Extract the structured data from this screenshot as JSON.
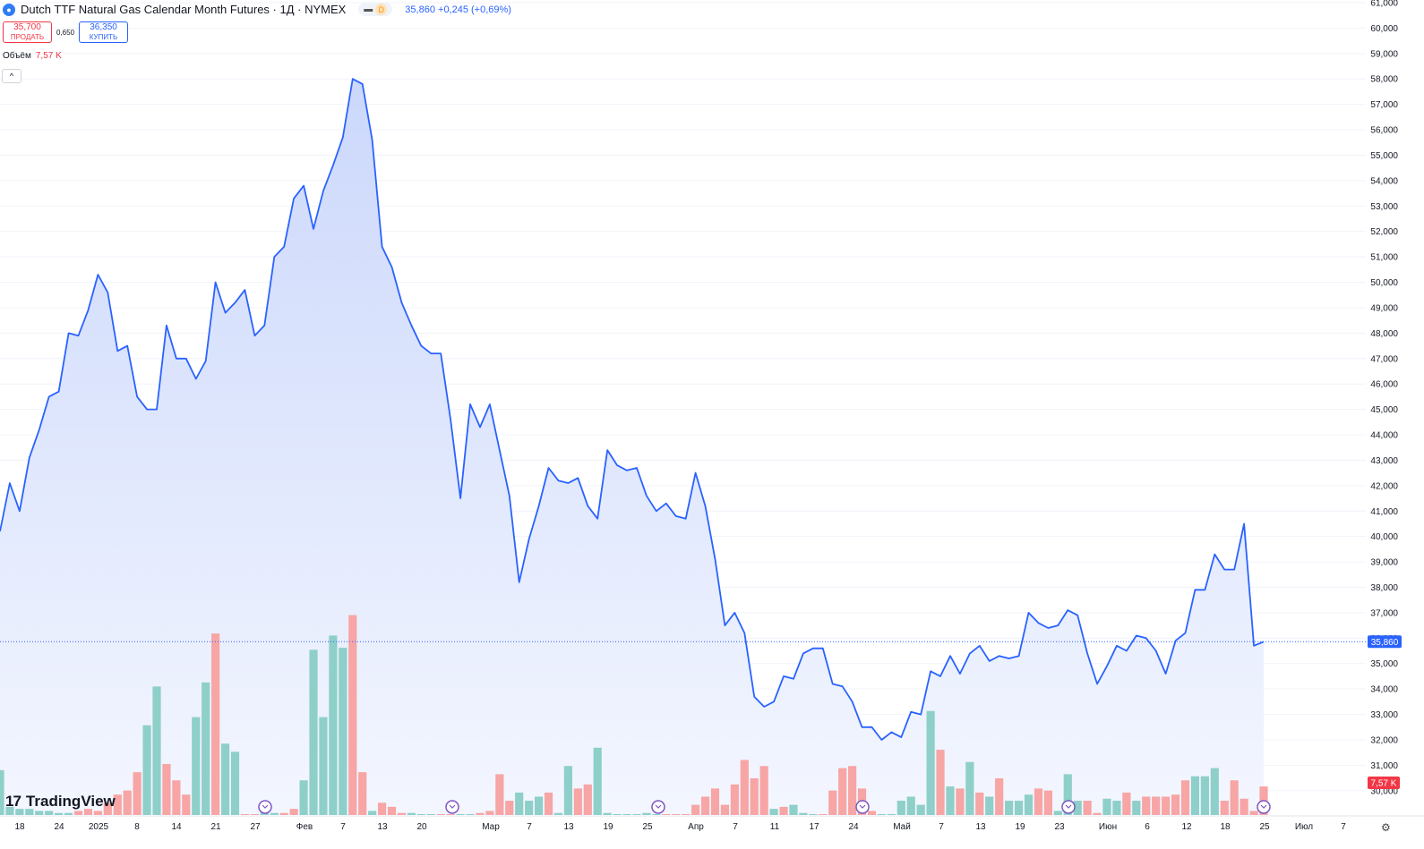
{
  "legend": {
    "icon": "drop-icon",
    "title": "Dutch TTF Natural Gas Calendar Month Futures · 1Д · NYMEX",
    "badge_letter": "D",
    "last": "35,860",
    "change": "+0,245 (+0,69%)"
  },
  "trade": {
    "sell_price": "35,700",
    "sell_label": "ПРОДАТЬ",
    "spread": "0,650",
    "buy_price": "36,350",
    "buy_label": "КУПИТЬ"
  },
  "volume_legend": {
    "label": "Объём",
    "value": "7,57 K"
  },
  "collapse_icon": "^",
  "brand": "TradingView",
  "colors": {
    "line": "#2962ff",
    "area_top": "#c9d6fb",
    "area_bottom": "#f3f6ff",
    "vol_up": "#8ecfc9",
    "vol_down": "#f7a5a5",
    "price_badge": "#2962ff",
    "vol_badge": "#f23645"
  },
  "chart_data": {
    "type": "area",
    "ylim": [
      29.5,
      61
    ],
    "y_ticks": [
      "30,000",
      "31,000",
      "32,000",
      "33,000",
      "34,000",
      "35,000",
      "36,000",
      "37,000",
      "38,000",
      "39,000",
      "40,000",
      "41,000",
      "42,000",
      "43,000",
      "44,000",
      "45,000",
      "46,000",
      "47,000",
      "48,000",
      "49,000",
      "50,000",
      "51,000",
      "52,000",
      "53,000",
      "54,000",
      "55,000",
      "56,000",
      "57,000",
      "58,000",
      "59,000",
      "60,000",
      "61,000"
    ],
    "x_ticks": [
      "18",
      "24",
      "2025",
      "8",
      "14",
      "21",
      "27",
      "Фев",
      "7",
      "13",
      "20",
      "Мар",
      "7",
      "13",
      "19",
      "25",
      "Апр",
      "7",
      "11",
      "17",
      "24",
      "Май",
      "7",
      "13",
      "19",
      "23",
      "Июн",
      "6",
      "12",
      "18",
      "25",
      "Июл",
      "7"
    ],
    "last_price_label": "35,860",
    "last_price": 35.86,
    "volume_last_label": "7,57 K",
    "series": [
      {
        "values": [
          40.2,
          42.1,
          41.0,
          43.1,
          44.2,
          45.5,
          45.7,
          48.0,
          47.9,
          48.9,
          50.3,
          49.6,
          47.3,
          47.5,
          45.5,
          45.0,
          45.0,
          48.3,
          47.0,
          47.0,
          46.2,
          46.9,
          50.0,
          48.8,
          49.2,
          49.7,
          47.9,
          48.3,
          51.0,
          51.4,
          53.3,
          53.8,
          52.1,
          53.6,
          54.6,
          55.7,
          58.0,
          57.8,
          55.6,
          51.4,
          50.6,
          49.2,
          48.3,
          47.5,
          47.2,
          47.2,
          44.6,
          41.5,
          45.2,
          44.3,
          45.2,
          43.4,
          41.6,
          38.2,
          39.9,
          41.2,
          42.7,
          42.2,
          42.1,
          42.3,
          41.2,
          40.7,
          43.4,
          42.8,
          42.6,
          42.7,
          41.6,
          41.0,
          41.3,
          40.8,
          40.7,
          42.5,
          41.2,
          39.1,
          36.5,
          37.0,
          36.2,
          33.7,
          33.3,
          33.5,
          34.5,
          34.4,
          35.4,
          35.6,
          35.6,
          34.2,
          34.1,
          33.5,
          32.5,
          32.5,
          32.0,
          32.3,
          32.1,
          33.1,
          33.0,
          34.7,
          34.5,
          35.3,
          34.6,
          35.4,
          35.7,
          35.1,
          35.3,
          35.2,
          35.3,
          37.0,
          36.6,
          36.4,
          36.5,
          37.1,
          36.9,
          35.4,
          34.2,
          34.9,
          35.7,
          35.5,
          36.1,
          36.0,
          35.5,
          34.6,
          35.9,
          36.2,
          37.9,
          37.9,
          39.3,
          38.7,
          38.7,
          40.5,
          35.7,
          35.86
        ]
      }
    ],
    "volume": [
      {
        "up": true,
        "v": 0.22
      },
      {
        "up": true,
        "v": 0.04
      },
      {
        "up": true,
        "v": 0.03
      },
      {
        "up": true,
        "v": 0.03
      },
      {
        "up": true,
        "v": 0.02
      },
      {
        "up": true,
        "v": 0.02
      },
      {
        "up": true,
        "v": 0.01
      },
      {
        "up": true,
        "v": 0.01
      },
      {
        "up": false,
        "v": 0.02
      },
      {
        "up": false,
        "v": 0.03
      },
      {
        "up": false,
        "v": 0.02
      },
      {
        "up": false,
        "v": 0.06
      },
      {
        "up": false,
        "v": 0.1
      },
      {
        "up": false,
        "v": 0.12
      },
      {
        "up": false,
        "v": 0.21
      },
      {
        "up": true,
        "v": 0.44
      },
      {
        "up": true,
        "v": 0.63
      },
      {
        "up": false,
        "v": 0.25
      },
      {
        "up": false,
        "v": 0.17
      },
      {
        "up": false,
        "v": 0.1
      },
      {
        "up": true,
        "v": 0.48
      },
      {
        "up": true,
        "v": 0.65
      },
      {
        "up": false,
        "v": 0.89
      },
      {
        "up": true,
        "v": 0.35
      },
      {
        "up": true,
        "v": 0.31
      },
      {
        "up": false,
        "v": 0.0
      },
      {
        "up": false,
        "v": 0.0
      },
      {
        "up": true,
        "v": 0.02
      },
      {
        "up": true,
        "v": 0.01
      },
      {
        "up": false,
        "v": 0.01
      },
      {
        "up": false,
        "v": 0.03
      },
      {
        "up": true,
        "v": 0.17
      },
      {
        "up": true,
        "v": 0.81
      },
      {
        "up": true,
        "v": 0.48
      },
      {
        "up": true,
        "v": 0.88
      },
      {
        "up": true,
        "v": 0.82
      },
      {
        "up": false,
        "v": 0.98
      },
      {
        "up": false,
        "v": 0.21
      },
      {
        "up": true,
        "v": 0.02
      },
      {
        "up": false,
        "v": 0.06
      },
      {
        "up": false,
        "v": 0.04
      },
      {
        "up": false,
        "v": 0.01
      },
      {
        "up": true,
        "v": 0.01
      },
      {
        "up": true,
        "v": 0.0
      },
      {
        "up": true,
        "v": 0.0
      },
      {
        "up": false,
        "v": 0.0
      },
      {
        "up": false,
        "v": 0.0
      },
      {
        "up": true,
        "v": 0.0
      },
      {
        "up": true,
        "v": 0.0
      },
      {
        "up": false,
        "v": 0.01
      },
      {
        "up": false,
        "v": 0.02
      },
      {
        "up": false,
        "v": 0.2
      },
      {
        "up": false,
        "v": 0.07
      },
      {
        "up": true,
        "v": 0.11
      },
      {
        "up": true,
        "v": 0.07
      },
      {
        "up": true,
        "v": 0.09
      },
      {
        "up": false,
        "v": 0.11
      },
      {
        "up": true,
        "v": 0.01
      },
      {
        "up": true,
        "v": 0.24
      },
      {
        "up": false,
        "v": 0.13
      },
      {
        "up": false,
        "v": 0.15
      },
      {
        "up": true,
        "v": 0.33
      },
      {
        "up": true,
        "v": 0.01
      },
      {
        "up": true,
        "v": 0.0
      },
      {
        "up": true,
        "v": 0.0
      },
      {
        "up": true,
        "v": 0.0
      },
      {
        "up": true,
        "v": 0.01
      },
      {
        "up": true,
        "v": 0.0
      },
      {
        "up": false,
        "v": 0.0
      },
      {
        "up": false,
        "v": 0.0
      },
      {
        "up": false,
        "v": 0.0
      },
      {
        "up": false,
        "v": 0.05
      },
      {
        "up": false,
        "v": 0.09
      },
      {
        "up": false,
        "v": 0.13
      },
      {
        "up": false,
        "v": 0.05
      },
      {
        "up": false,
        "v": 0.15
      },
      {
        "up": false,
        "v": 0.27
      },
      {
        "up": false,
        "v": 0.18
      },
      {
        "up": false,
        "v": 0.24
      },
      {
        "up": true,
        "v": 0.03
      },
      {
        "up": false,
        "v": 0.04
      },
      {
        "up": true,
        "v": 0.05
      },
      {
        "up": true,
        "v": 0.01
      },
      {
        "up": true,
        "v": 0.0
      },
      {
        "up": false,
        "v": 0.0
      },
      {
        "up": false,
        "v": 0.12
      },
      {
        "up": false,
        "v": 0.23
      },
      {
        "up": false,
        "v": 0.24
      },
      {
        "up": false,
        "v": 0.13
      },
      {
        "up": false,
        "v": 0.02
      },
      {
        "up": true,
        "v": 0.0
      },
      {
        "up": true,
        "v": 0.0
      },
      {
        "up": true,
        "v": 0.07
      },
      {
        "up": true,
        "v": 0.09
      },
      {
        "up": true,
        "v": 0.05
      },
      {
        "up": true,
        "v": 0.51
      },
      {
        "up": false,
        "v": 0.32
      },
      {
        "up": true,
        "v": 0.14
      },
      {
        "up": false,
        "v": 0.13
      },
      {
        "up": true,
        "v": 0.26
      },
      {
        "up": false,
        "v": 0.11
      },
      {
        "up": true,
        "v": 0.09
      },
      {
        "up": false,
        "v": 0.18
      },
      {
        "up": true,
        "v": 0.07
      },
      {
        "up": true,
        "v": 0.07
      },
      {
        "up": true,
        "v": 0.1
      },
      {
        "up": false,
        "v": 0.13
      },
      {
        "up": false,
        "v": 0.12
      },
      {
        "up": true,
        "v": 0.02
      },
      {
        "up": true,
        "v": 0.2
      },
      {
        "up": true,
        "v": 0.07
      },
      {
        "up": false,
        "v": 0.07
      },
      {
        "up": false,
        "v": 0.01
      },
      {
        "up": true,
        "v": 0.08
      },
      {
        "up": true,
        "v": 0.07
      },
      {
        "up": false,
        "v": 0.11
      },
      {
        "up": true,
        "v": 0.07
      },
      {
        "up": false,
        "v": 0.09
      },
      {
        "up": false,
        "v": 0.09
      },
      {
        "up": false,
        "v": 0.09
      },
      {
        "up": false,
        "v": 0.1
      },
      {
        "up": false,
        "v": 0.17
      },
      {
        "up": true,
        "v": 0.19
      },
      {
        "up": true,
        "v": 0.19
      },
      {
        "up": true,
        "v": 0.23
      },
      {
        "up": false,
        "v": 0.07
      },
      {
        "up": false,
        "v": 0.17
      },
      {
        "up": false,
        "v": 0.08
      },
      {
        "up": false,
        "v": 0.02
      },
      {
        "up": false,
        "v": 0.14
      }
    ],
    "event_icon": "dividend-arrow-icon",
    "event_ticks": [
      "27",
      "20",
      "25",
      "24",
      "23",
      "25"
    ]
  }
}
